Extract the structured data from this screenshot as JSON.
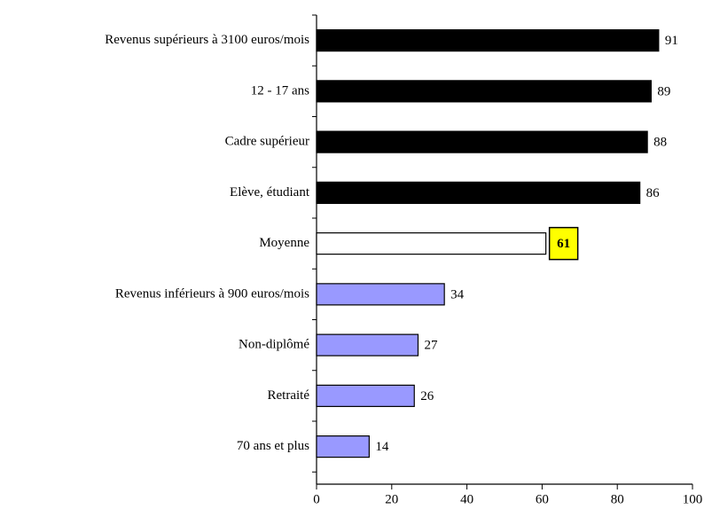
{
  "chart_data": {
    "type": "barh",
    "categories": [
      "Revenus supérieurs à 3100 euros/mois",
      "12 - 17 ans",
      "Cadre supérieur",
      "Elève, étudiant",
      "Moyenne",
      "Revenus inférieurs à 900 euros/mois",
      "Non-diplômé",
      "Retraité",
      "70 ans et plus"
    ],
    "values": [
      91,
      89,
      88,
      86,
      61,
      34,
      27,
      26,
      14
    ],
    "colors": [
      "#000000",
      "#000000",
      "#000000",
      "#000000",
      "#ffffff",
      "#9999ff",
      "#9999ff",
      "#9999ff",
      "#9999ff"
    ],
    "highlight": "Moyenne",
    "xlim": [
      0,
      100
    ],
    "xticks": [
      0,
      20,
      40,
      60,
      80,
      100
    ]
  }
}
